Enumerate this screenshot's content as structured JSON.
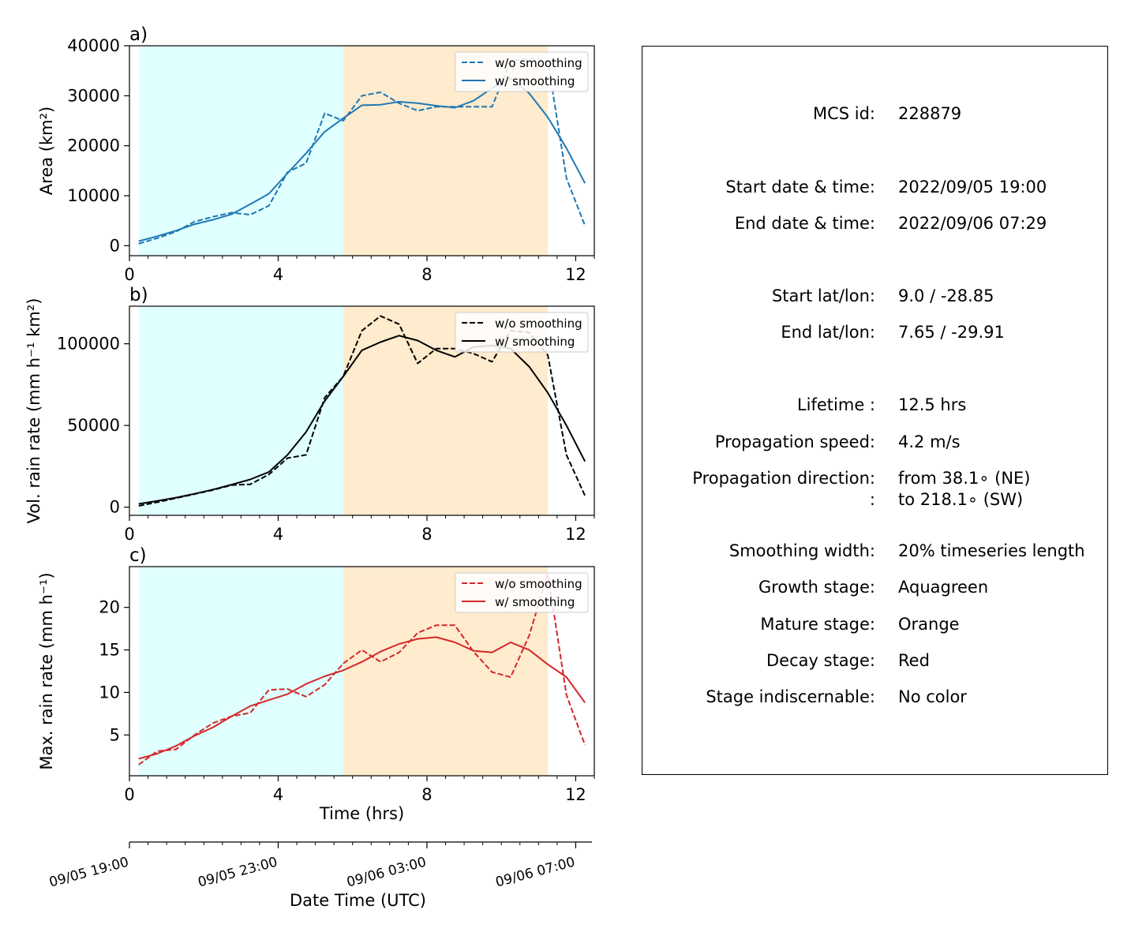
{
  "colors": {
    "growth_span": "#e0ffff",
    "mature_span": "#ffebcd",
    "area": "#1f77b4",
    "volrain": "#000000",
    "maxrain": "#d62728"
  },
  "legend": {
    "raw": "w/o smoothing",
    "smooth": "w/ smoothing"
  },
  "chart_data": [
    {
      "type": "line",
      "panel_label": "a)",
      "ylabel": "Area  (km²)",
      "xlim": [
        0,
        12.5
      ],
      "ylim": [
        -2000,
        40000
      ],
      "yticks": [
        0,
        10000,
        20000,
        30000,
        40000
      ],
      "xticks": [
        0,
        4,
        8,
        12
      ],
      "spans": [
        {
          "stage": "growth",
          "x0": 0.25,
          "x1": 5.75
        },
        {
          "stage": "mature",
          "x0": 5.75,
          "x1": 11.25
        }
      ],
      "legend_position": "top-right",
      "x": [
        0.25,
        0.75,
        1.25,
        1.75,
        2.25,
        2.75,
        3.25,
        3.75,
        4.25,
        4.75,
        5.25,
        5.75,
        6.25,
        6.75,
        7.25,
        7.75,
        8.25,
        8.75,
        9.25,
        9.75,
        10.25,
        10.75,
        11.25,
        11.75,
        12.25
      ],
      "series": [
        {
          "name": "w/o smoothing",
          "style": "dashed",
          "values": [
            400,
            1500,
            2800,
            4800,
            5800,
            6600,
            6200,
            8000,
            14700,
            16500,
            26500,
            25000,
            30000,
            30700,
            28500,
            27000,
            27800,
            27800,
            27800,
            27800,
            37000,
            37500,
            37000,
            13500,
            4000
          ]
        },
        {
          "name": "w/ smoothing",
          "style": "solid",
          "values": [
            900,
            1900,
            3000,
            4300,
            5200,
            6300,
            8300,
            10400,
            14500,
            18500,
            22800,
            25500,
            28100,
            28200,
            28800,
            28500,
            28000,
            27600,
            29000,
            31500,
            33500,
            30500,
            25700,
            19500,
            12500
          ]
        }
      ]
    },
    {
      "type": "line",
      "panel_label": "b)",
      "ylabel": "Vol. rain rate (mm h⁻¹ km²)",
      "xlim": [
        0,
        12.5
      ],
      "ylim": [
        -5000,
        123000
      ],
      "yticks": [
        0,
        50000,
        100000
      ],
      "xticks": [
        0,
        4,
        8,
        12
      ],
      "spans": [
        {
          "stage": "growth",
          "x0": 0.25,
          "x1": 5.75
        },
        {
          "stage": "mature",
          "x0": 5.75,
          "x1": 11.25
        }
      ],
      "legend_position": "top-right",
      "x": [
        0.25,
        0.75,
        1.25,
        1.75,
        2.25,
        2.75,
        3.25,
        3.75,
        4.25,
        4.75,
        5.25,
        5.75,
        6.25,
        6.75,
        7.25,
        7.75,
        8.25,
        8.75,
        9.25,
        9.75,
        10.25,
        10.75,
        11.25,
        11.75,
        12.25
      ],
      "series": [
        {
          "name": "w/o smoothing",
          "style": "dashed",
          "values": [
            800,
            3000,
            5500,
            8000,
            10500,
            13500,
            14000,
            20000,
            30000,
            32000,
            67000,
            80000,
            108000,
            117000,
            112000,
            88000,
            97000,
            97000,
            94000,
            89000,
            108000,
            107000,
            93000,
            32000,
            7000
          ]
        },
        {
          "name": "w/ smoothing",
          "style": "solid",
          "values": [
            2000,
            3800,
            5800,
            8200,
            10800,
            13800,
            17000,
            21500,
            32000,
            46000,
            65000,
            80000,
            96000,
            101000,
            105000,
            102000,
            96000,
            92000,
            98000,
            99000,
            97000,
            86000,
            70000,
            50000,
            28000
          ]
        }
      ]
    },
    {
      "type": "line",
      "panel_label": "c)",
      "ylabel": "Max. rain rate  (mm h⁻¹)",
      "xlabel": "Time (hrs)",
      "xlim": [
        0,
        12.5
      ],
      "ylim": [
        0.2,
        24.8
      ],
      "yticks": [
        5,
        10,
        15,
        20
      ],
      "xticks": [
        0,
        4,
        8,
        12
      ],
      "spans": [
        {
          "stage": "growth",
          "x0": 0.25,
          "x1": 5.75
        },
        {
          "stage": "mature",
          "x0": 5.75,
          "x1": 11.25
        }
      ],
      "legend_position": "top-right",
      "x": [
        0.25,
        0.75,
        1.25,
        1.75,
        2.25,
        2.75,
        3.25,
        3.75,
        4.25,
        4.75,
        5.25,
        5.75,
        6.25,
        6.75,
        7.25,
        7.75,
        8.25,
        8.75,
        9.25,
        9.75,
        10.25,
        10.75,
        11.25,
        11.75,
        12.25
      ],
      "series": [
        {
          "name": "w/o smoothing",
          "style": "dashed",
          "values": [
            1.5,
            3.1,
            3.3,
            5.0,
            6.4,
            7.2,
            7.6,
            10.3,
            10.4,
            9.5,
            10.9,
            13.4,
            15.0,
            13.6,
            14.7,
            17.0,
            17.9,
            17.9,
            14.8,
            12.4,
            11.8,
            16.7,
            24.0,
            9.7,
            3.8
          ]
        },
        {
          "name": "w/ smoothing",
          "style": "solid",
          "values": [
            2.2,
            2.8,
            3.7,
            4.9,
            5.9,
            7.2,
            8.4,
            9.1,
            9.8,
            11.0,
            11.9,
            12.6,
            13.6,
            14.8,
            15.7,
            16.3,
            16.5,
            15.9,
            14.9,
            14.7,
            15.9,
            15.0,
            13.3,
            11.8,
            8.8
          ]
        }
      ]
    }
  ],
  "date_axis": {
    "xlabel": "Date Time (UTC)",
    "ticks": [
      {
        "x": 0,
        "label": "09/05 19:00"
      },
      {
        "x": 4,
        "label": "09/05 23:00"
      },
      {
        "x": 8,
        "label": "09/06 03:00"
      },
      {
        "x": 12,
        "label": "09/06 07:00"
      }
    ]
  },
  "info": {
    "mcs_id_label": "MCS id:",
    "mcs_id_value": "228879",
    "start_time_label": "Start date & time:",
    "start_time_value": "2022/09/05 19:00",
    "end_time_label": "End date & time:",
    "end_time_value": "2022/09/06 07:29",
    "start_latlon_label": "Start lat/lon:",
    "start_latlon_value": "9.0 / -28.85",
    "end_latlon_label": "End lat/lon:",
    "end_latlon_value": "7.65 / -29.91",
    "lifetime_label": "Lifetime :",
    "lifetime_value": "12.5 hrs",
    "prop_speed_label": "Propagation speed:",
    "prop_speed_value": "4.2 m/s",
    "prop_dir_label": "Propagation direction:",
    "prop_dir_from": "from  38.1∘ (NE)",
    "prop_dir_colon": ":",
    "prop_dir_to": "to   218.1∘ (SW)",
    "smoothing_label": "Smoothing width:",
    "smoothing_value": "20% timeseries length",
    "growth_label": "Growth stage:",
    "growth_value": "Aquagreen",
    "mature_label": "Mature stage:",
    "mature_value": "Orange",
    "decay_label": "Decay stage:",
    "decay_value": "Red",
    "indisc_label": "Stage indiscernable:",
    "indisc_value": "No color"
  }
}
